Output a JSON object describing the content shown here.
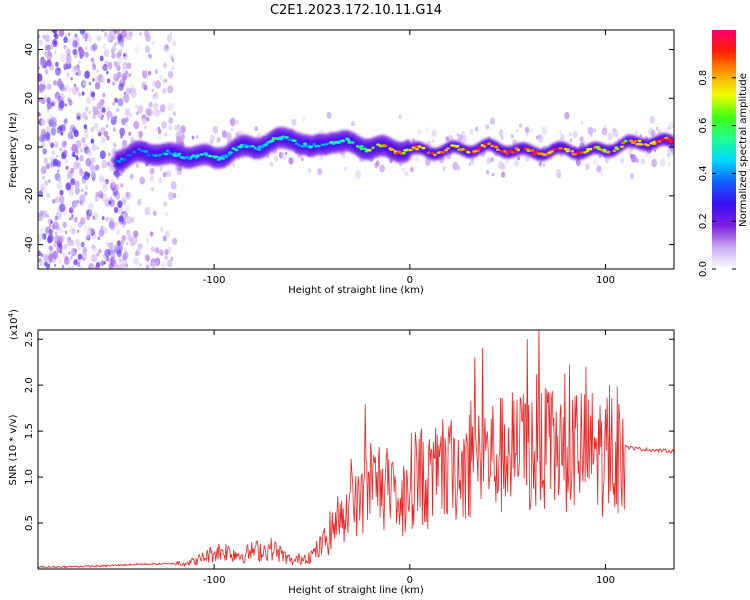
{
  "figure": {
    "title": "C2E1.2023.172.10.11.G14"
  },
  "chart_data": [
    {
      "type": "heatmap",
      "xlabel": "Height of straight line (km)",
      "ylabel": "Frequency (Hz)",
      "xlim": [
        -190,
        135
      ],
      "ylim": [
        -50,
        48
      ],
      "xticks": [
        -100,
        0,
        100
      ],
      "yticks": [
        -40,
        -20,
        0,
        20,
        40
      ],
      "colorbar": {
        "label": "Normalized spectral amplitude",
        "range": [
          0,
          1
        ],
        "ticks": [
          0.0,
          0.2,
          0.4,
          0.6,
          0.8
        ],
        "colormap": [
          "#ffffff",
          "#c9a8f0",
          "#7a1fe0",
          "#3a10f0",
          "#1060ff",
          "#00d8ff",
          "#20ff90",
          "#40ff10",
          "#f0ff00",
          "#ffa000",
          "#ff2000",
          "#ff0070"
        ]
      },
      "ridge": {
        "x": [
          -150,
          -140,
          -130,
          -120,
          -110,
          -100,
          -90,
          -80,
          -70,
          -60,
          -50,
          -40,
          -30,
          -20,
          -10,
          0,
          10,
          20,
          30,
          40,
          50,
          60,
          70,
          80,
          90,
          100,
          110,
          120,
          135
        ],
        "frequency": [
          -5,
          -3,
          -2,
          -4,
          -3,
          -5,
          -1,
          0,
          2,
          4,
          -1,
          3,
          1,
          0,
          -1,
          -1,
          -2,
          -1,
          -1,
          0,
          -1,
          -2,
          -2,
          -1,
          -2,
          -1,
          1,
          2,
          2
        ],
        "amplitude": [
          0.4,
          0.45,
          0.45,
          0.5,
          0.5,
          0.55,
          0.5,
          0.5,
          0.55,
          0.5,
          0.5,
          0.55,
          0.6,
          0.75,
          0.85,
          0.9,
          0.95,
          0.85,
          0.9,
          0.95,
          0.95,
          0.9,
          0.95,
          0.95,
          0.9,
          0.85,
          0.85,
          0.95,
          0.95
        ]
      }
    },
    {
      "type": "line",
      "xlabel": "Height of straight line (km)",
      "ylabel": "SNR (10 * v/v)",
      "scale_label": "(x10",
      "scale_exponent": "4",
      "xlim": [
        -190,
        135
      ],
      "ylim": [
        0,
        2.6
      ],
      "xticks": [
        -100,
        0,
        100
      ],
      "yticks": [
        0.5,
        1.0,
        1.5,
        2.0,
        2.5
      ],
      "color": "#ee2222",
      "envelope": {
        "x": [
          -190,
          -160,
          -140,
          -120,
          -110,
          -100,
          -95,
          -90,
          -85,
          -80,
          -75,
          -70,
          -65,
          -60,
          -55,
          -50,
          -45,
          -40,
          -35,
          -30,
          -25,
          -20,
          -15,
          -10,
          -5,
          0,
          5,
          10,
          15,
          20,
          25,
          30,
          35,
          40,
          45,
          50,
          55,
          60,
          65,
          70,
          75,
          80,
          85,
          90,
          95,
          100,
          105,
          110,
          112,
          120,
          135
        ],
        "y": [
          0.02,
          0.03,
          0.05,
          0.06,
          0.08,
          0.18,
          0.2,
          0.17,
          0.15,
          0.2,
          0.2,
          0.22,
          0.15,
          0.08,
          0.12,
          0.15,
          0.25,
          0.42,
          0.6,
          0.62,
          0.75,
          0.88,
          0.95,
          0.75,
          0.6,
          0.95,
          1.05,
          0.9,
          1.05,
          1.05,
          1.1,
          1.15,
          1.2,
          1.25,
          1.2,
          1.28,
          1.25,
          1.3,
          1.25,
          1.28,
          1.3,
          1.3,
          1.32,
          1.25,
          1.3,
          1.2,
          1.3,
          1.35,
          1.32,
          1.3,
          1.28
        ]
      },
      "spikes": [
        {
          "x": -30,
          "y": 1.2
        },
        {
          "x": -23,
          "y": 1.8
        },
        {
          "x": 33,
          "y": 2.3
        },
        {
          "x": 37,
          "y": 2.4
        },
        {
          "x": 60,
          "y": 2.5
        },
        {
          "x": 66,
          "y": 2.62
        },
        {
          "x": 90,
          "y": 2.2
        },
        {
          "x": 102,
          "y": 2.0
        }
      ]
    }
  ]
}
